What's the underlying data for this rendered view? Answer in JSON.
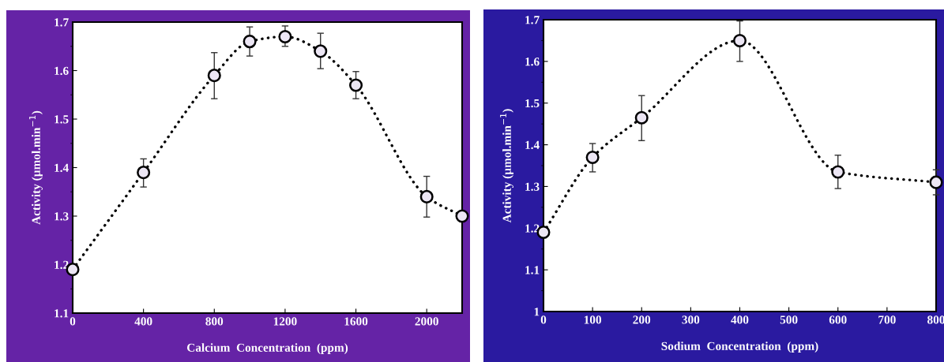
{
  "chart_data": [
    {
      "type": "line",
      "xlabel": "Calcium  Concentration  (ppm)",
      "ylabel": "Activity (µmol.min$^{−1}$)",
      "x": [
        0,
        400,
        800,
        1000,
        1200,
        1400,
        1600,
        2000,
        2200
      ],
      "series": [
        {
          "color": "#000000",
          "values": [
            1.19,
            1.39,
            1.59,
            1.66,
            1.67,
            1.64,
            1.57,
            1.34,
            1.3
          ],
          "errors": [
            null,
            [
              1.36,
              1.418
            ],
            [
              1.542,
              1.637
            ],
            [
              1.63,
              1.69
            ],
            [
              1.65,
              1.692
            ],
            [
              1.604,
              1.677
            ],
            [
              1.542,
              1.598
            ],
            [
              1.298,
              1.382
            ],
            null
          ]
        }
      ],
      "xlim": [
        0,
        2200
      ],
      "xticks": [
        0,
        400,
        800,
        1200,
        1600,
        2000
      ],
      "ylim": [
        1.1,
        1.7
      ],
      "yticks": [
        1.1,
        1.2,
        1.3,
        1.4,
        1.5,
        1.6,
        1.7
      ],
      "marker": "circle",
      "line_style": "dotted",
      "grid": false,
      "legend": false
    },
    {
      "type": "line",
      "xlabel": "Sodium  Concentration  (ppm)",
      "ylabel": "Activity (µmol.min$^{−1}$)",
      "x": [
        0,
        100,
        200,
        400,
        600,
        800
      ],
      "series": [
        {
          "color": "#000000",
          "values": [
            1.19,
            1.37,
            1.465,
            1.65,
            1.335,
            1.31
          ],
          "errors": [
            null,
            [
              1.335,
              1.403
            ],
            [
              1.41,
              1.518
            ],
            [
              1.6,
              1.697
            ],
            [
              1.295,
              1.375
            ],
            [
              1.28,
              1.34
            ]
          ]
        }
      ],
      "xlim": [
        0,
        800
      ],
      "xticks": [
        0,
        100,
        200,
        300,
        400,
        500,
        600,
        700,
        800
      ],
      "ylim": [
        1,
        1.7
      ],
      "yticks": [
        1,
        1.1,
        1.2,
        1.3,
        1.4,
        1.5,
        1.6,
        1.7
      ],
      "marker": "circle",
      "line_style": "dotted",
      "grid": false,
      "legend": false
    }
  ]
}
